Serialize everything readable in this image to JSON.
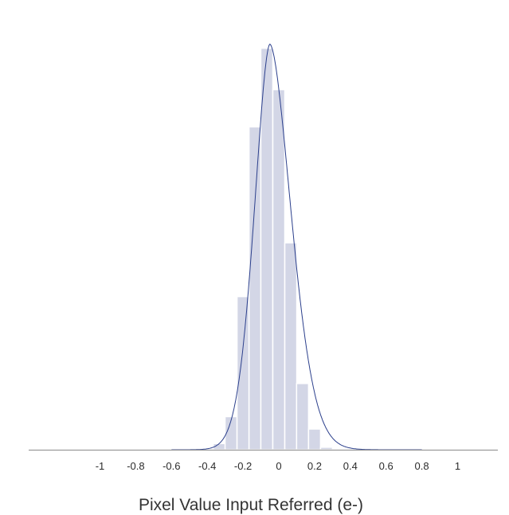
{
  "chart_data": {
    "type": "bar",
    "title": "",
    "xlabel": "Pixel Value Input Referred (e-)",
    "ylabel": "",
    "x_ticks": [
      "-1",
      "-0.8",
      "-0.6",
      "-0.4",
      "-0.2",
      "0",
      "0.2",
      "0.4",
      "0.6",
      "0.8",
      "1"
    ],
    "x_tick_values": [
      -1,
      -0.8,
      -0.6,
      -0.4,
      -0.2,
      0,
      0.2,
      0.4,
      0.6,
      0.8,
      1
    ],
    "xlim": [
      -1.1,
      1.1
    ],
    "ylim": [
      0,
      1.0
    ],
    "grid": false,
    "legend": "none",
    "bin_width": 0.067,
    "bins": [
      {
        "x": -0.333,
        "value": 0.015
      },
      {
        "x": -0.267,
        "value": 0.08
      },
      {
        "x": -0.2,
        "value": 0.37
      },
      {
        "x": -0.133,
        "value": 0.78
      },
      {
        "x": -0.067,
        "value": 0.97
      },
      {
        "x": 0.0,
        "value": 0.87
      },
      {
        "x": 0.067,
        "value": 0.5
      },
      {
        "x": 0.133,
        "value": 0.16
      },
      {
        "x": 0.2,
        "value": 0.05
      },
      {
        "x": 0.267,
        "value": 0.006
      }
    ],
    "fit_curve": {
      "type": "line",
      "peak_x": -0.05,
      "peak_value": 0.98,
      "x_range": [
        -0.6,
        0.8
      ],
      "color": "#2b3f8c"
    },
    "colors": {
      "bars": "#d3d6e6",
      "bar_edge": "#ffffff",
      "curve": "#2b3f8c",
      "axis": "#9a9a9a"
    }
  }
}
